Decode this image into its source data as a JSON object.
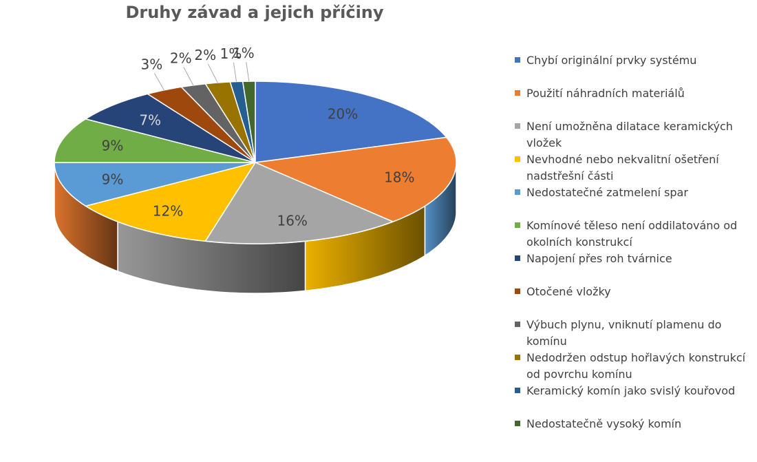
{
  "chart_data": {
    "type": "pie",
    "title": "Druhy závad a jejich příčiny",
    "legend_position": "right",
    "slices": [
      {
        "label": "Chybí originální prvky systému",
        "value": 20,
        "value_label": "20%",
        "color": "#4472C4"
      },
      {
        "label": "Použití náhradních materiálů",
        "value": 18,
        "value_label": "18%",
        "color": "#ED7D31"
      },
      {
        "label": "Není umožněna dilatace keramických vložek",
        "value": 16,
        "value_label": "16%",
        "color": "#A5A5A5"
      },
      {
        "label": "Nevhodné nebo nekvalitní ošetření nadstřešní části",
        "value": 12,
        "value_label": "12%",
        "color": "#FFC000"
      },
      {
        "label": "Nedostatečné zatmelení spar",
        "value": 9,
        "value_label": "9%",
        "color": "#5B9BD5"
      },
      {
        "label": "Komínové těleso není oddilatováno od okolních konstrukcí",
        "value": 9,
        "value_label": "9%",
        "color": "#70AD47"
      },
      {
        "label": "Napojení přes roh tvárnice",
        "value": 7,
        "value_label": "7%",
        "color": "#264478"
      },
      {
        "label": "Otočené vložky",
        "value": 3,
        "value_label": "3%",
        "color": "#9E480E"
      },
      {
        "label": "Výbuch plynu, vniknutí plamenu do komínu",
        "value": 2,
        "value_label": "2%",
        "color": "#636363"
      },
      {
        "label": "Nedodržen odstup hořlavých konstrukcí od povrchu komínu",
        "value": 2,
        "value_label": "2%",
        "color": "#997300"
      },
      {
        "label": "Keramický komín jako svislý kouřovod",
        "value": 1,
        "value_label": "1%",
        "color": "#255E91"
      },
      {
        "label": "Nedostatečně vysoký komín",
        "value": 1,
        "value_label": "1%",
        "color": "#43682B"
      }
    ]
  }
}
